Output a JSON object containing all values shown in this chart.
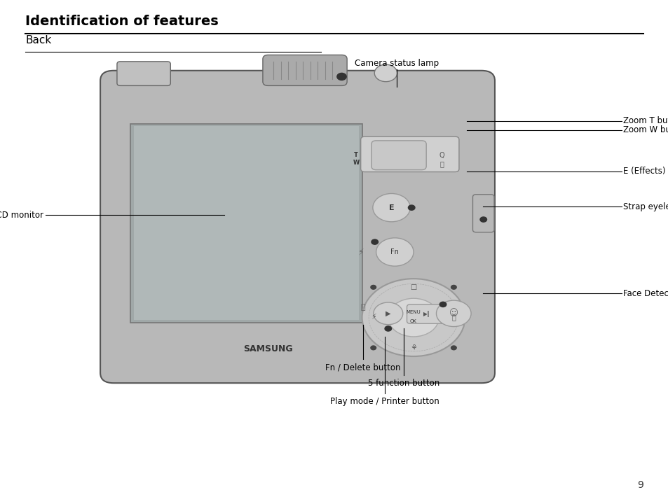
{
  "title": "Identification of features",
  "subtitle": "Back",
  "page_number": "9",
  "background_color": "#ffffff",
  "title_fontsize": 14,
  "subtitle_fontsize": 11
}
